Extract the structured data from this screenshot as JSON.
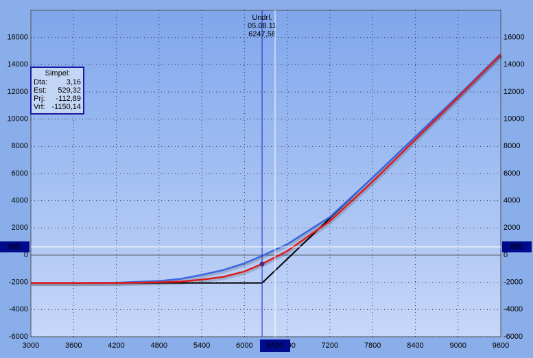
{
  "chart_data": {
    "type": "line",
    "x": [
      3000,
      3600,
      4200,
      4800,
      5100,
      5400,
      5700,
      6000,
      6247.58,
      6600,
      7200,
      7800,
      8400,
      9000,
      9600
    ],
    "series": [
      {
        "color": "#000000",
        "values": [
          -2050,
          -2050,
          -2050,
          -2050,
          -2050,
          -2050,
          -2050,
          -2050,
          -2050,
          -290,
          2710,
          5710,
          8710,
          11710,
          14710
        ]
      },
      {
        "color": "#3a66e0",
        "values": [
          -2050,
          -2050,
          -2030,
          -1900,
          -1750,
          -1450,
          -1100,
          -600,
          -50,
          800,
          2800,
          5700,
          8700,
          11700,
          14800
        ]
      },
      {
        "color": "#e01a1a",
        "values": [
          -2050,
          -2050,
          -2050,
          -2000,
          -1950,
          -1800,
          -1600,
          -1200,
          -650,
          300,
          2500,
          5400,
          8500,
          11600,
          14750
        ]
      }
    ],
    "xlim": [
      3000,
      9600
    ],
    "xticks": [
      3000,
      3600,
      4200,
      4800,
      5400,
      6000,
      6600,
      7200,
      7800,
      8400,
      9000,
      9600
    ],
    "ylim": [
      -6000,
      18000
    ],
    "yticks": [
      -6000,
      -4000,
      -2000,
      0,
      2000,
      4000,
      6000,
      8000,
      10000,
      12000,
      14000,
      16000
    ],
    "grid": true,
    "underlying": {
      "label": "Undrl.",
      "date": "05.08.11",
      "value": 6247.58,
      "value_label": "6247,58",
      "point": -650
    },
    "crosshair": {
      "x": 6430,
      "y": 605
    },
    "info_box": {
      "title": "Simpel:",
      "rows": [
        [
          "Dta:",
          "3,16"
        ],
        [
          "Est:",
          "529,32"
        ],
        [
          "Prj:",
          "-112,89"
        ],
        [
          "Vrf:",
          "-1150,14"
        ]
      ]
    }
  }
}
